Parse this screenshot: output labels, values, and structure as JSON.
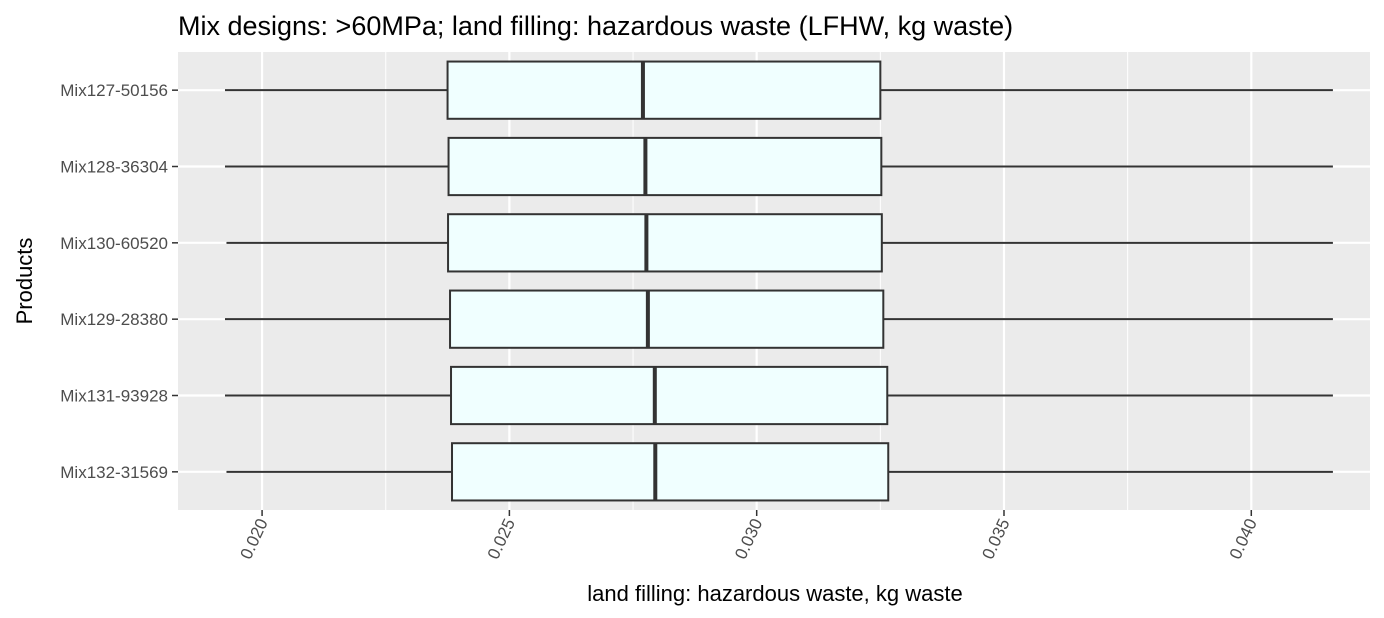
{
  "chart_data": {
    "type": "boxplot",
    "orientation": "horizontal",
    "title": "Mix designs: >60MPa; land filling: hazardous waste (LFHW, kg waste)",
    "xlabel": "land filling: hazardous waste, kg waste",
    "ylabel": "Products",
    "xlim": [
      0.0183,
      0.0424
    ],
    "x_ticks": [
      0.02,
      0.025,
      0.03,
      0.035,
      0.04
    ],
    "x_tick_labels": [
      "0.020",
      "0.025",
      "0.030",
      "0.035",
      "0.040"
    ],
    "x_tick_rotation": -65,
    "grid": true,
    "legend": "none",
    "colors": {
      "panel_background": "#ebebeb",
      "gridline": "#ffffff",
      "box_fill": "#f0ffff",
      "box_stroke": "#333333"
    },
    "categories": [
      "Mix127-50156",
      "Mix128-36304",
      "Mix130-60520",
      "Mix129-28380",
      "Mix131-93928",
      "Mix132-31569"
    ],
    "boxes": [
      {
        "name": "Mix127-50156",
        "min": 0.01925,
        "q1": 0.02375,
        "median": 0.0277,
        "q3": 0.0325,
        "max": 0.04165
      },
      {
        "name": "Mix128-36304",
        "min": 0.01925,
        "q1": 0.02377,
        "median": 0.02775,
        "q3": 0.03252,
        "max": 0.04165
      },
      {
        "name": "Mix130-60520",
        "min": 0.01928,
        "q1": 0.02376,
        "median": 0.02777,
        "q3": 0.03253,
        "max": 0.04165
      },
      {
        "name": "Mix129-28380",
        "min": 0.01925,
        "q1": 0.0238,
        "median": 0.0278,
        "q3": 0.03256,
        "max": 0.04165
      },
      {
        "name": "Mix131-93928",
        "min": 0.01925,
        "q1": 0.02382,
        "median": 0.02794,
        "q3": 0.03264,
        "max": 0.04165
      },
      {
        "name": "Mix132-31569",
        "min": 0.01928,
        "q1": 0.02384,
        "median": 0.02795,
        "q3": 0.03266,
        "max": 0.04165
      }
    ]
  }
}
